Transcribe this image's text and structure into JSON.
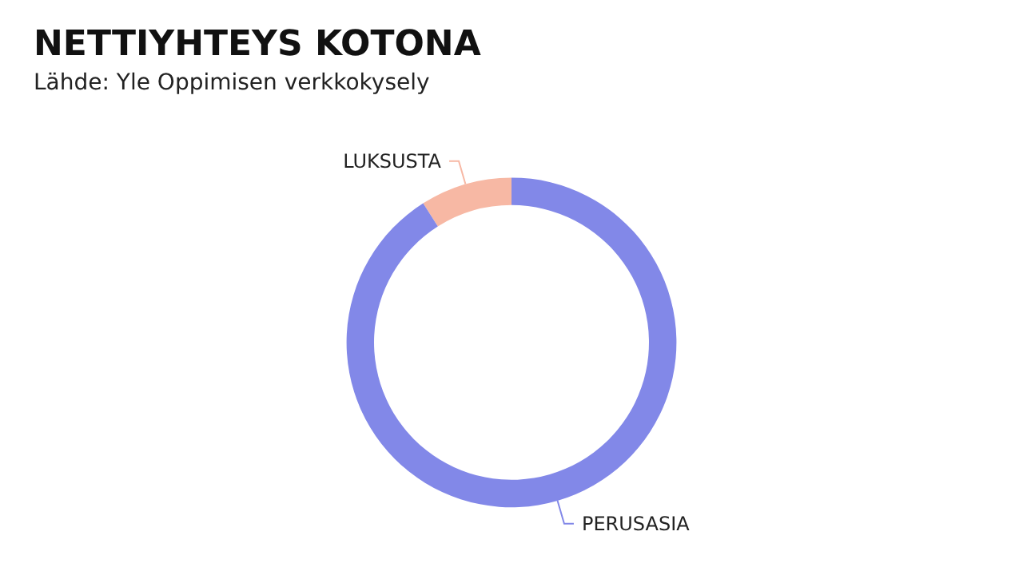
{
  "chart_data": {
    "type": "donut",
    "title": "NETTIYHTEYS KOTONA",
    "subtitle": "Lähde: Yle Oppimisen verkkokysely",
    "categories": [
      "LUKSUSTA",
      "PERUSASIA"
    ],
    "values": [
      9,
      91
    ],
    "colors": [
      "#f7b8a4",
      "#8288e8"
    ],
    "legend": false
  }
}
